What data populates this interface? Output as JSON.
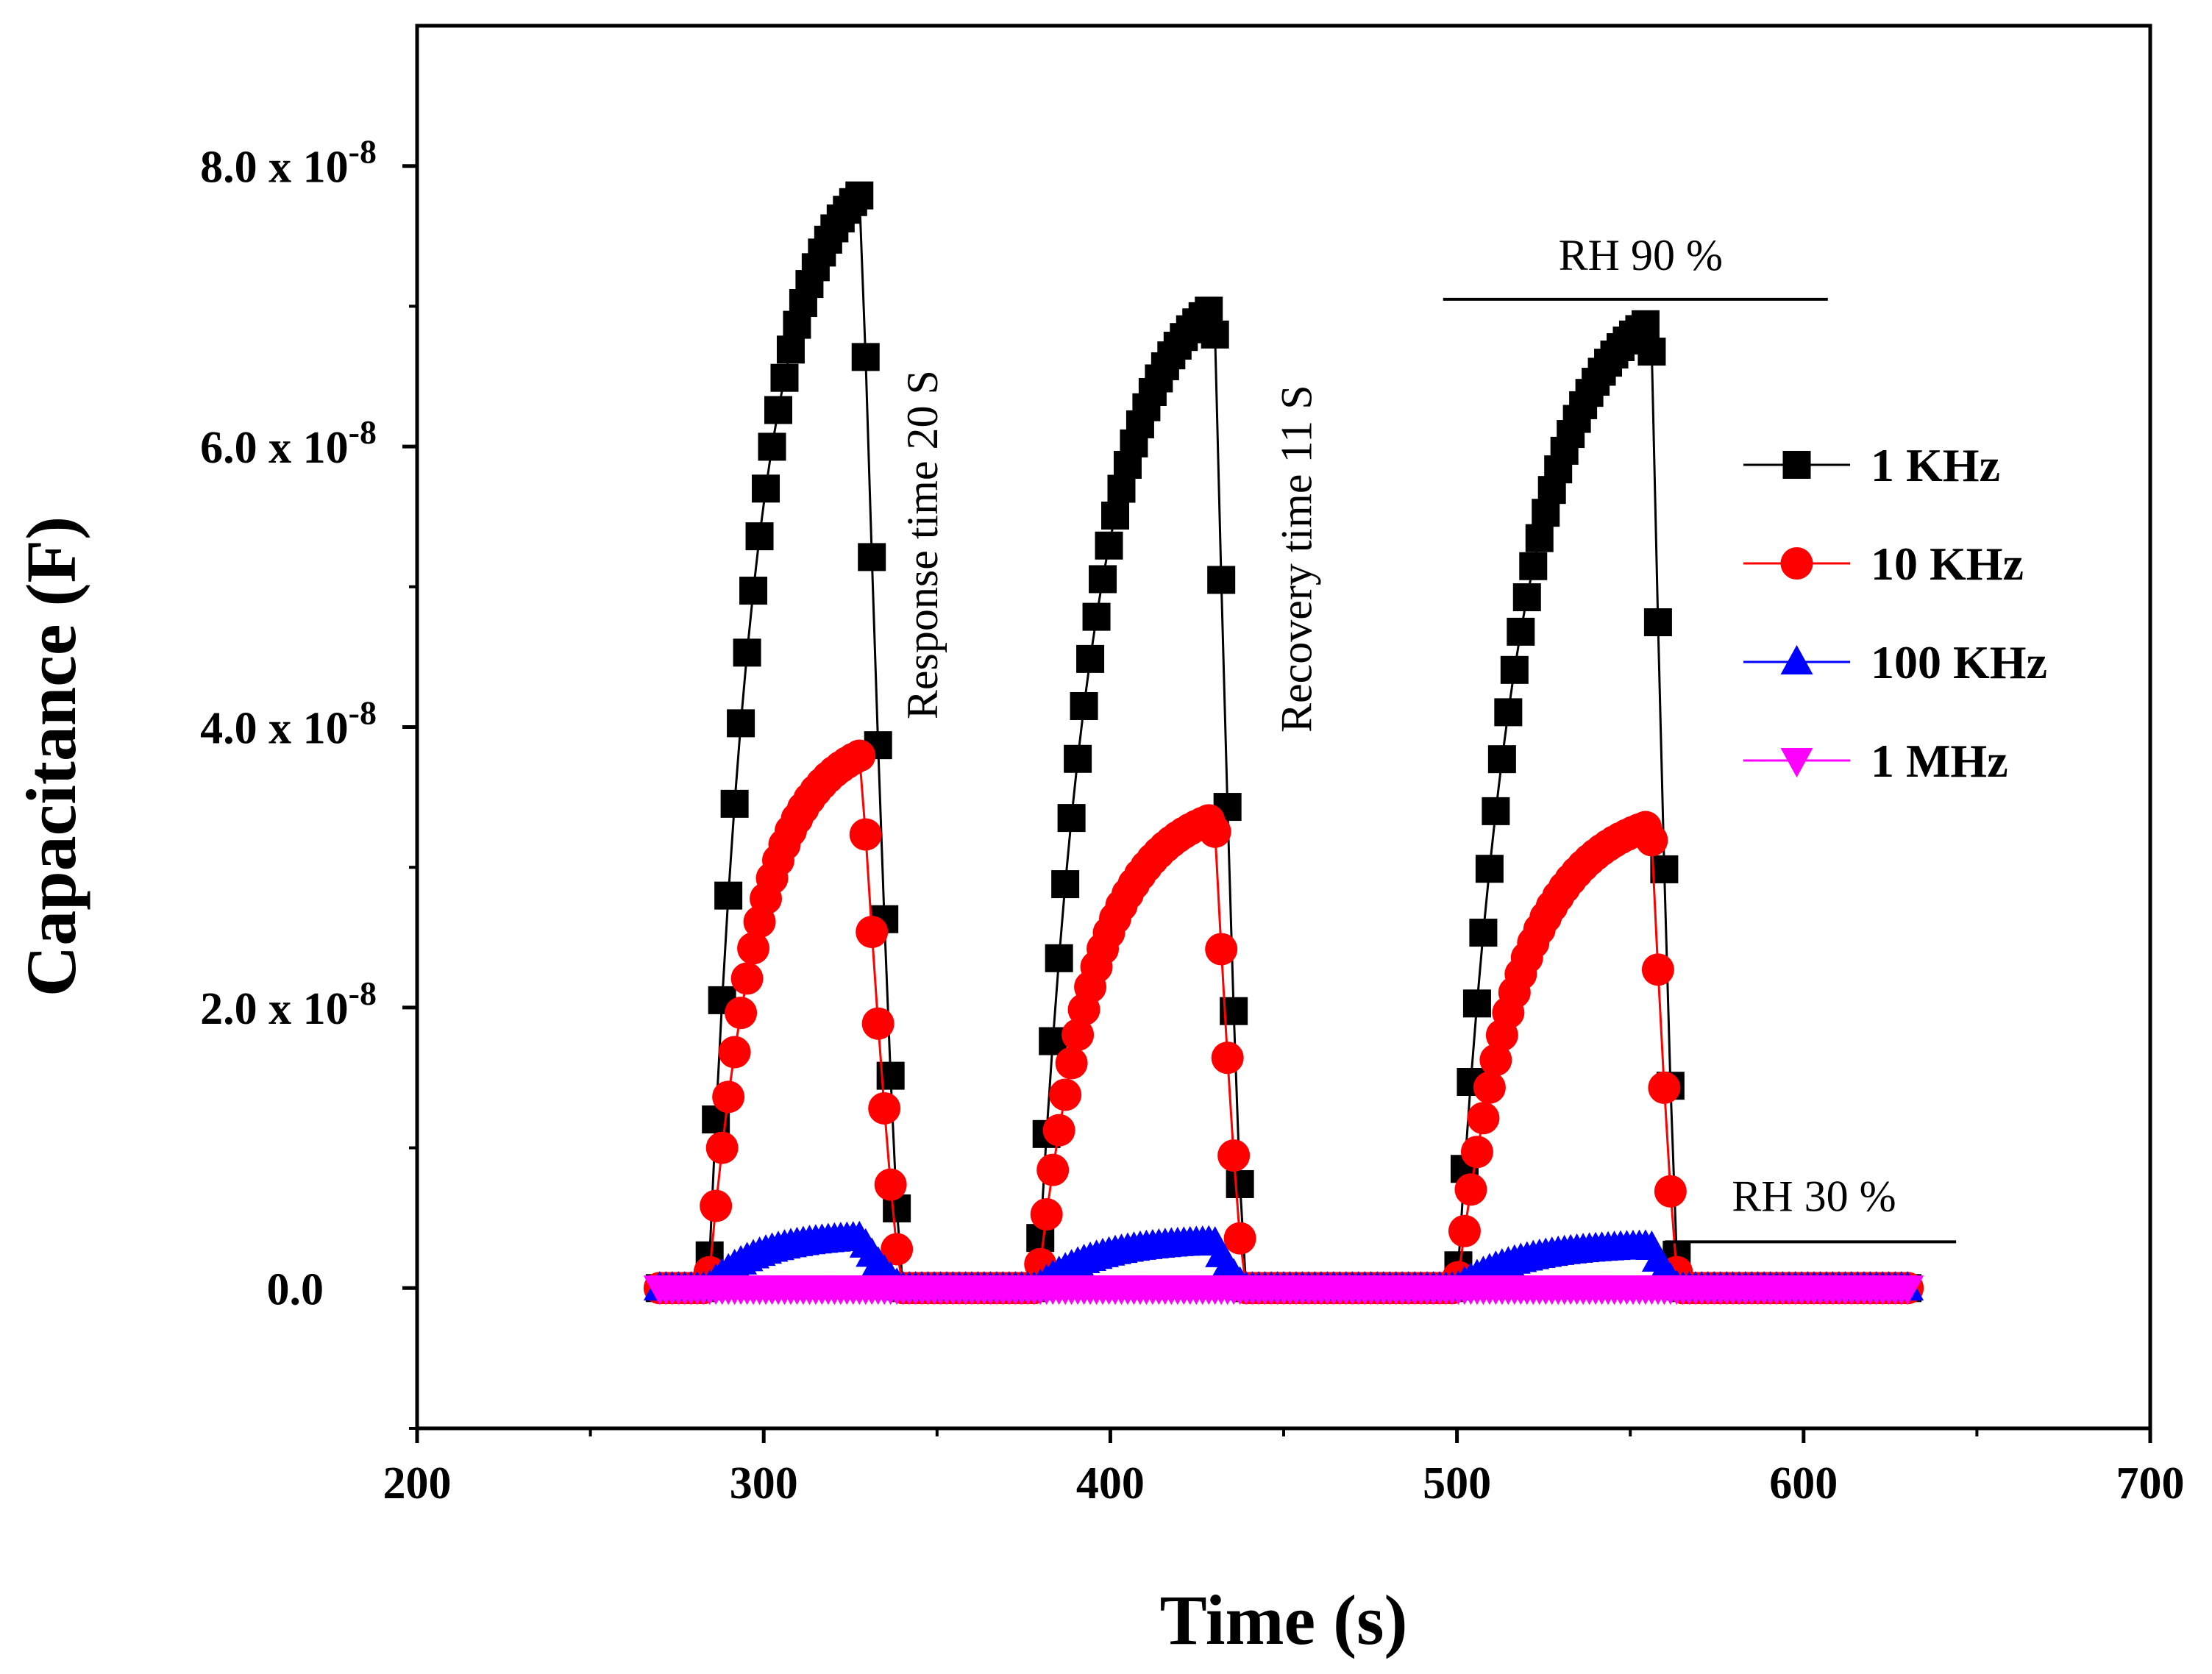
{
  "chart_data": {
    "type": "line",
    "title": "",
    "xlabel": "Time (s)",
    "ylabel": "Capacitance (F)",
    "xlim": [
      200,
      700
    ],
    "ylim": [
      -1e-08,
      9e-08
    ],
    "x_ticks": [
      200,
      300,
      400,
      500,
      600,
      700
    ],
    "x_tick_labels": [
      "200",
      "300",
      "400",
      "500",
      "600",
      "700"
    ],
    "y_ticks": [
      0,
      2e-08,
      4e-08,
      6e-08,
      8e-08
    ],
    "y_tick_labels": [
      {
        "base": "0.0",
        "exp": ""
      },
      {
        "base": "2.0 x 10",
        "exp": "-8"
      },
      {
        "base": "4.0 x 10",
        "exp": "-8"
      },
      {
        "base": "6.0 x 10",
        "exp": "-8"
      },
      {
        "base": "8.0 x 10",
        "exp": "-8"
      }
    ],
    "legend_position": "right",
    "annotations": [
      {
        "text": "Response time 20 S",
        "x": 350,
        "y": 5.3e-08,
        "rotate": -90
      },
      {
        "text": "Recovery time 11 S",
        "x": 458,
        "y": 5.2e-08,
        "rotate": -90
      },
      {
        "text": "RH 90 %",
        "x": 553,
        "y": 7.26e-08
      },
      {
        "text": "RH 30 %",
        "x": 603,
        "y": 5.5e-09
      }
    ],
    "reference_lines": [
      {
        "x1": 496,
        "x2": 607,
        "y": 7.05e-08
      },
      {
        "x1": 560,
        "x2": 644,
        "y": 3.3e-09
      }
    ],
    "cycles": [
      {
        "start": 284,
        "end": 328,
        "drop_end": 340,
        "peaks": {
          "1 KHz": 7.8e-08,
          "10 KHz": 3.8e-08,
          "100 KHz": 3.6e-09,
          "1 MHz": 0.0
        }
      },
      {
        "start": 379,
        "end": 430,
        "drop_end": 439,
        "peaks": {
          "1 KHz": 7e-08,
          "10 KHz": 3.35e-08,
          "100 KHz": 3.3e-09,
          "1 MHz": 0.0
        }
      },
      {
        "start": 500,
        "end": 556,
        "drop_end": 564,
        "peaks": {
          "1 KHz": 6.9e-08,
          "10 KHz": 3.3e-08,
          "100 KHz": 3e-09,
          "1 MHz": 0.0
        }
      }
    ],
    "x_range": [
      270,
      630
    ],
    "baseline": 0.0,
    "series": [
      {
        "name": "1 KHz",
        "color": "#000000",
        "line_color": "#000000",
        "marker": "square"
      },
      {
        "name": "10 KHz",
        "color": "#ff0000",
        "line_color": "#ff0000",
        "marker": "circle"
      },
      {
        "name": "100 KHz",
        "color": "#0000ff",
        "line_color": "#0000ff",
        "marker": "triangle-up"
      },
      {
        "name": "1 MHz",
        "color": "#ff00ff",
        "line_color": "#ff00ff",
        "marker": "triangle-down"
      }
    ]
  }
}
